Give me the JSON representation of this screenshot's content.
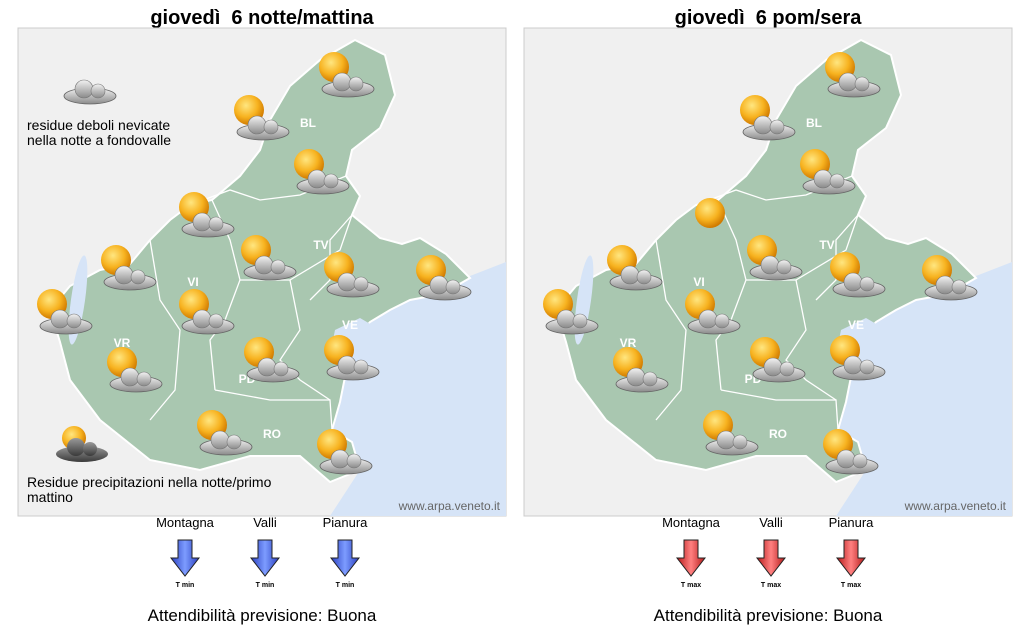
{
  "panels": [
    {
      "title": "giovedì  6 notte/mattina",
      "regions": [
        "BL",
        "TV",
        "VI",
        "VR",
        "PD",
        "VE",
        "RO"
      ],
      "notes": [
        [
          "residue deboli nevicate",
          "nella notte a fondovalle"
        ],
        [
          "Residue precipitazioni nella notte/primo",
          "mattino"
        ]
      ],
      "watermark": "www.arpa.veneto.it",
      "temperature": [
        {
          "zone": "Montagna",
          "label": "T min"
        },
        {
          "zone": "Valli",
          "label": "T min"
        },
        {
          "zone": "Pianura",
          "label": "T min"
        }
      ],
      "reliability": "Attendibilità previsione: Buona"
    },
    {
      "title": "giovedì  6 pom/sera",
      "regions": [
        "BL",
        "TV",
        "VI",
        "VR",
        "PD",
        "VE",
        "RO"
      ],
      "notes": [],
      "watermark": "www.arpa.veneto.it",
      "temperature": [
        {
          "zone": "Montagna",
          "label": "T max"
        },
        {
          "zone": "Valli",
          "label": "T max"
        },
        {
          "zone": "Pianura",
          "label": "T max"
        }
      ],
      "reliability": "Attendibilità previsione: Buona"
    }
  ]
}
